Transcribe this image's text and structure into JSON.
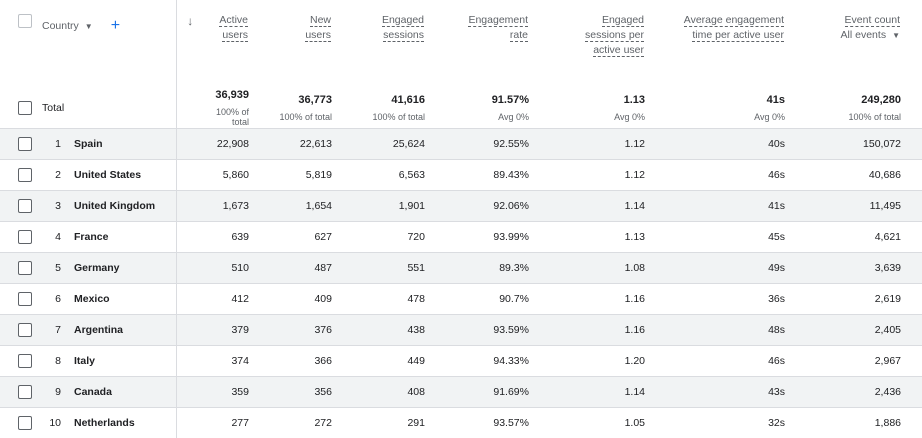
{
  "header": {
    "dimension_label": "Country",
    "add_symbol": "+",
    "sort_symbol": "↓",
    "columns": [
      {
        "lines": [
          "Active",
          "users"
        ]
      },
      {
        "lines": [
          "New",
          "users"
        ]
      },
      {
        "lines": [
          "Engaged",
          "sessions"
        ]
      },
      {
        "lines": [
          "Engagement",
          "rate"
        ]
      },
      {
        "lines": [
          "Engaged",
          "sessions per",
          "active user"
        ]
      },
      {
        "lines": [
          "Average engagement",
          "time per active user"
        ]
      },
      {
        "lines": [
          "Event count"
        ],
        "selector": "All events"
      }
    ]
  },
  "total": {
    "label": "Total",
    "values": [
      "36,939",
      "36,773",
      "41,616",
      "91.57%",
      "1.13",
      "41s",
      "249,280"
    ],
    "subs": [
      "100% of total",
      "100% of total",
      "100% of total",
      "Avg 0%",
      "Avg 0%",
      "Avg 0%",
      "100% of total"
    ]
  },
  "rows": [
    {
      "rank": "1",
      "country": "Spain",
      "values": [
        "22,908",
        "22,613",
        "25,624",
        "92.55%",
        "1.12",
        "40s",
        "150,072"
      ]
    },
    {
      "rank": "2",
      "country": "United States",
      "values": [
        "5,860",
        "5,819",
        "6,563",
        "89.43%",
        "1.12",
        "46s",
        "40,686"
      ]
    },
    {
      "rank": "3",
      "country": "United Kingdom",
      "values": [
        "1,673",
        "1,654",
        "1,901",
        "92.06%",
        "1.14",
        "41s",
        "11,495"
      ]
    },
    {
      "rank": "4",
      "country": "France",
      "values": [
        "639",
        "627",
        "720",
        "93.99%",
        "1.13",
        "45s",
        "4,621"
      ]
    },
    {
      "rank": "5",
      "country": "Germany",
      "values": [
        "510",
        "487",
        "551",
        "89.3%",
        "1.08",
        "49s",
        "3,639"
      ]
    },
    {
      "rank": "6",
      "country": "Mexico",
      "values": [
        "412",
        "409",
        "478",
        "90.7%",
        "1.16",
        "36s",
        "2,619"
      ]
    },
    {
      "rank": "7",
      "country": "Argentina",
      "values": [
        "379",
        "376",
        "438",
        "93.59%",
        "1.16",
        "48s",
        "2,405"
      ]
    },
    {
      "rank": "8",
      "country": "Italy",
      "values": [
        "374",
        "366",
        "449",
        "94.33%",
        "1.20",
        "46s",
        "2,967"
      ]
    },
    {
      "rank": "9",
      "country": "Canada",
      "values": [
        "359",
        "356",
        "408",
        "91.69%",
        "1.14",
        "43s",
        "2,436"
      ]
    },
    {
      "rank": "10",
      "country": "Netherlands",
      "values": [
        "277",
        "272",
        "291",
        "93.57%",
        "1.05",
        "32s",
        "1,886"
      ]
    }
  ],
  "colors": {
    "accent": "#1a73e8",
    "row_shade": "#f1f3f4",
    "divider": "#dadce0"
  }
}
